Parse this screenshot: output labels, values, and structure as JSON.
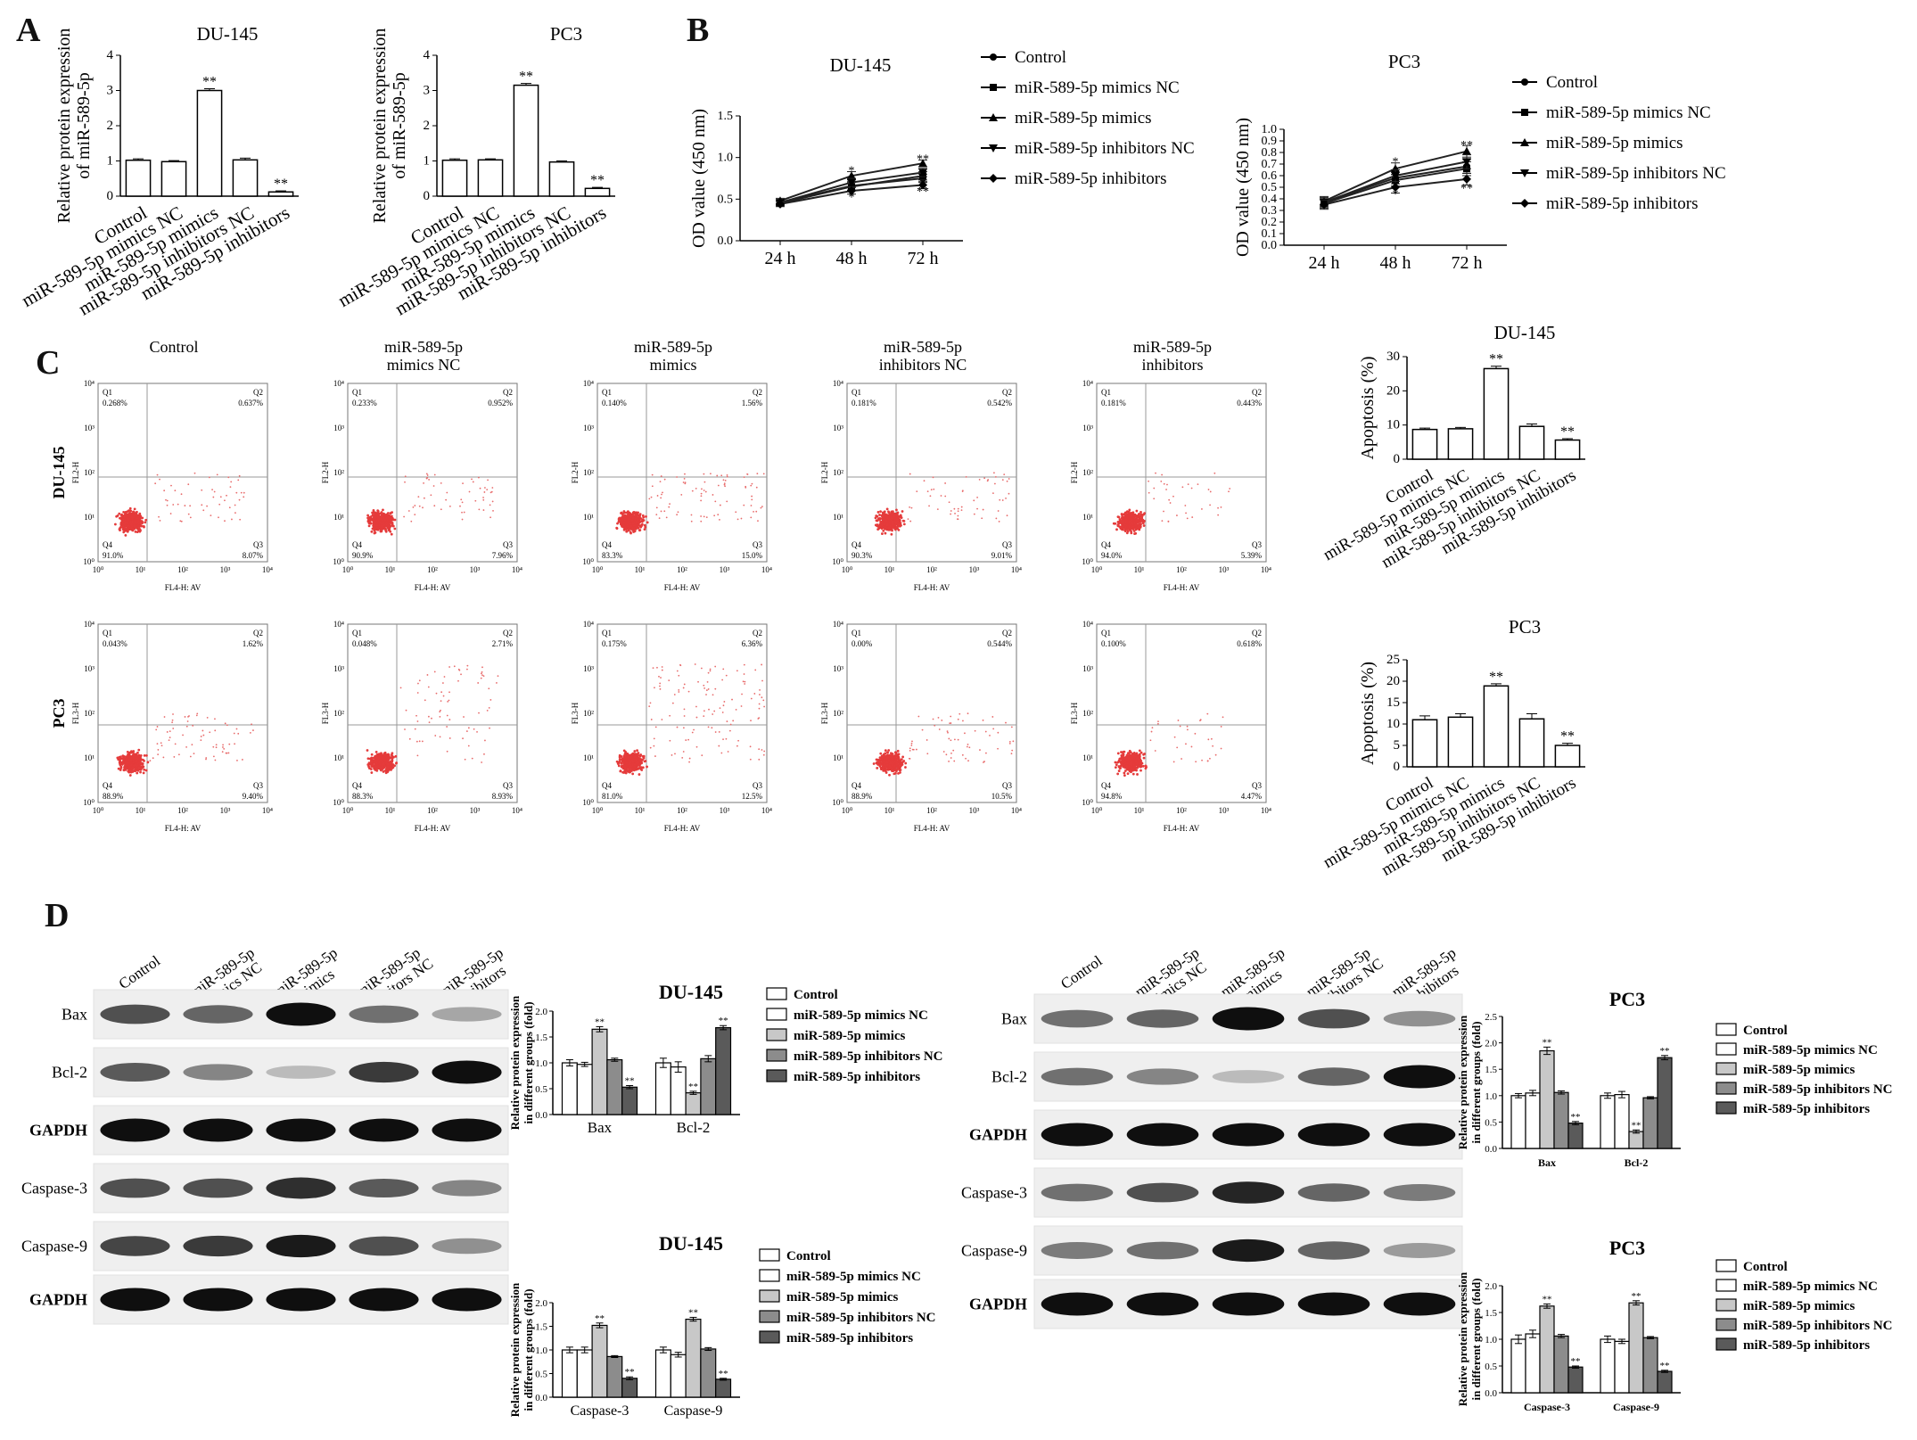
{
  "panel_labels": {
    "a": "A",
    "b": "B",
    "c": "C",
    "d": "D"
  },
  "sig": {
    "double": "**",
    "single": "*"
  },
  "groups": [
    "Control",
    "miR-589-5p mimics NC",
    "miR-589-5p mimics",
    "miR-589-5p inhibitors NC",
    "miR-589-5p inhibitors"
  ],
  "flow": {
    "row_labels": [
      "DU-145",
      "PC3"
    ],
    "column_titles": [
      [
        "Control"
      ],
      [
        "miR-589-5p",
        "mimics NC"
      ],
      [
        "miR-589-5p",
        "mimics"
      ],
      [
        "miR-589-5p",
        "inhibitors NC"
      ],
      [
        "miR-589-5p",
        "inhibitors"
      ]
    ],
    "x_label": "FL4-H: AV",
    "y_labels": [
      "FL2-H",
      "FL3-H"
    ],
    "quadrant_names": [
      "Q1",
      "Q2",
      "Q3",
      "Q4"
    ],
    "tick_labels": [
      "10⁰",
      "10¹",
      "10²",
      "10³",
      "10⁴"
    ],
    "quadrants": [
      [
        {
          "q1": "0.268%",
          "q2": "0.637%",
          "q3": "8.07%",
          "q4": "91.0%"
        },
        {
          "q1": "0.233%",
          "q2": "0.952%",
          "q3": "7.96%",
          "q4": "90.9%"
        },
        {
          "q1": "0.140%",
          "q2": "1.56%",
          "q3": "15.0%",
          "q4": "83.3%"
        },
        {
          "q1": "0.181%",
          "q2": "0.542%",
          "q3": "9.01%",
          "q4": "90.3%"
        },
        {
          "q1": "0.181%",
          "q2": "0.443%",
          "q3": "5.39%",
          "q4": "94.0%"
        }
      ],
      [
        {
          "q1": "0.043%",
          "q2": "1.62%",
          "q3": "9.40%",
          "q4": "88.9%"
        },
        {
          "q1": "0.048%",
          "q2": "2.71%",
          "q3": "8.93%",
          "q4": "88.3%"
        },
        {
          "q1": "0.175%",
          "q2": "6.36%",
          "q3": "12.5%",
          "q4": "81.0%"
        },
        {
          "q1": "0.00%",
          "q2": "0.544%",
          "q3": "10.5%",
          "q4": "88.9%"
        },
        {
          "q1": "0.100%",
          "q2": "0.618%",
          "q3": "4.47%",
          "q4": "94.8%"
        }
      ]
    ]
  },
  "western": {
    "left_lanes": [
      "Control",
      "miR-589-5p\nmimics NC",
      "miR-589-5p\nmimics",
      "miR-589-5p\ninhibitors NC",
      "miR-589-5p\ninhibitors"
    ],
    "right_lanes": [
      "Control",
      "miR-589-5p\nmimics NC",
      "miR-589-5p\nmimics",
      "miR-589-5p\ninhibitors NC",
      "miR-589-5p\ninhibitors"
    ],
    "rows": [
      "Bax",
      "Bcl-2",
      "GAPDH",
      "Caspase-3",
      "Caspase-9",
      "GAPDH"
    ],
    "bands_left": [
      [
        0.7,
        0.6,
        1.0,
        0.55,
        0.3
      ],
      [
        0.65,
        0.45,
        0.2,
        0.8,
        1.0
      ],
      [
        1,
        1,
        1,
        1,
        1
      ],
      [
        0.7,
        0.7,
        0.85,
        0.65,
        0.45
      ],
      [
        0.75,
        0.8,
        0.95,
        0.7,
        0.4
      ],
      [
        1,
        1,
        1,
        1,
        1
      ]
    ],
    "bands_right": [
      [
        0.55,
        0.6,
        1.0,
        0.7,
        0.4
      ],
      [
        0.55,
        0.45,
        0.2,
        0.6,
        1.0
      ],
      [
        1,
        1,
        1,
        1,
        1
      ],
      [
        0.55,
        0.7,
        0.9,
        0.6,
        0.5
      ],
      [
        0.5,
        0.55,
        0.95,
        0.6,
        0.35
      ],
      [
        1,
        1,
        1,
        1,
        1
      ]
    ]
  },
  "chart_data": [
    {
      "id": "A-DU145",
      "type": "bar",
      "title": "DU-145",
      "ylabel": "Relative protein expression\nof miR-589-5p",
      "categories": [
        "Control",
        "miR-589-5p mimics NC",
        "miR-589-5p mimics",
        "miR-589-5p inhibitors NC",
        "miR-589-5p inhibitors"
      ],
      "values": [
        1.02,
        0.98,
        3.0,
        1.03,
        0.12
      ],
      "errors": [
        0.04,
        0.03,
        0.05,
        0.05,
        0.03
      ],
      "sig": [
        "",
        "",
        "**",
        "",
        "**"
      ],
      "ylim": [
        0,
        4
      ],
      "yticks": [
        0,
        1,
        2,
        3,
        4
      ]
    },
    {
      "id": "A-PC3",
      "type": "bar",
      "title": "PC3",
      "ylabel": "Relative protein expression\nof miR-589-5p",
      "categories": [
        "Control",
        "miR-589-5p mimics NC",
        "miR-589-5p mimics",
        "miR-589-5p inhibitors NC",
        "miR-589-5p inhibitors"
      ],
      "values": [
        1.02,
        1.03,
        3.15,
        0.97,
        0.22
      ],
      "errors": [
        0.04,
        0.03,
        0.05,
        0.03,
        0.03
      ],
      "sig": [
        "",
        "",
        "**",
        "",
        "**"
      ],
      "ylim": [
        0,
        4
      ],
      "yticks": [
        0,
        1,
        2,
        3,
        4
      ]
    },
    {
      "id": "B-DU145",
      "type": "line",
      "title": "DU-145",
      "ylabel": "OD value (450 nm)",
      "x": [
        "24 h",
        "48 h",
        "72 h"
      ],
      "series": [
        {
          "name": "Control",
          "values": [
            0.46,
            0.66,
            0.75
          ],
          "errors": [
            0.03,
            0.05,
            0.05
          ]
        },
        {
          "name": "miR-589-5p mimics NC",
          "values": [
            0.45,
            0.65,
            0.78
          ],
          "errors": [
            0.03,
            0.05,
            0.05
          ]
        },
        {
          "name": "miR-589-5p mimics",
          "values": [
            0.48,
            0.78,
            0.93
          ],
          "errors": [
            0.03,
            0.05,
            0.04
          ]
        },
        {
          "name": "miR-589-5p inhibitors NC",
          "values": [
            0.46,
            0.7,
            0.82
          ],
          "errors": [
            0.03,
            0.05,
            0.05
          ]
        },
        {
          "name": "miR-589-5p inhibitors",
          "values": [
            0.44,
            0.6,
            0.67
          ],
          "errors": [
            0.03,
            0.04,
            0.04
          ]
        }
      ],
      "annotations": [
        {
          "x": "48 h",
          "y": 0.84,
          "text": "*"
        },
        {
          "x": "48 h",
          "y": 0.52,
          "text": "*"
        },
        {
          "x": "72 h",
          "y": 0.98,
          "text": "**"
        },
        {
          "x": "72 h",
          "y": 0.59,
          "text": "**"
        }
      ],
      "ylim": [
        0,
        1.5
      ],
      "yticks": [
        0.0,
        0.5,
        1.0,
        1.5
      ]
    },
    {
      "id": "B-PC3",
      "type": "line",
      "title": "PC3",
      "ylabel": "OD value (450 nm)",
      "x": [
        "24 h",
        "48 h",
        "72 h"
      ],
      "series": [
        {
          "name": "Control",
          "values": [
            0.37,
            0.58,
            0.68
          ],
          "errors": [
            0.04,
            0.05,
            0.06
          ]
        },
        {
          "name": "miR-589-5p mimics NC",
          "values": [
            0.36,
            0.56,
            0.66
          ],
          "errors": [
            0.04,
            0.05,
            0.06
          ]
        },
        {
          "name": "miR-589-5p mimics",
          "values": [
            0.38,
            0.66,
            0.81
          ],
          "errors": [
            0.04,
            0.05,
            0.05
          ]
        },
        {
          "name": "miR-589-5p inhibitors NC",
          "values": [
            0.37,
            0.6,
            0.72
          ],
          "errors": [
            0.04,
            0.05,
            0.06
          ]
        },
        {
          "name": "miR-589-5p inhibitors",
          "values": [
            0.35,
            0.5,
            0.57
          ],
          "errors": [
            0.04,
            0.05,
            0.05
          ]
        }
      ],
      "annotations": [
        {
          "x": "48 h",
          "y": 0.72,
          "text": "*"
        },
        {
          "x": "48 h",
          "y": 0.44,
          "text": "*"
        },
        {
          "x": "72 h",
          "y": 0.86,
          "text": "**"
        },
        {
          "x": "72 h",
          "y": 0.49,
          "text": "**"
        }
      ],
      "ylim": [
        0,
        1.0
      ],
      "yticks": [
        0.0,
        0.1,
        0.2,
        0.3,
        0.4,
        0.5,
        0.6,
        0.7,
        0.8,
        0.9,
        1.0
      ]
    },
    {
      "id": "C-DU145",
      "type": "bar",
      "title": "DU-145",
      "ylabel": "Apoptosis (%)",
      "categories": [
        "Control",
        "miR-589-5p mimics NC",
        "miR-589-5p mimics",
        "miR-589-5p inhibitors NC",
        "miR-589-5p inhibitors"
      ],
      "values": [
        8.7,
        8.9,
        26.5,
        9.6,
        5.6
      ],
      "errors": [
        0.4,
        0.4,
        0.7,
        0.7,
        0.4
      ],
      "sig": [
        "",
        "",
        "**",
        "",
        "**"
      ],
      "ylim": [
        0,
        30
      ],
      "yticks": [
        0,
        10,
        20,
        30
      ]
    },
    {
      "id": "C-PC3",
      "type": "bar",
      "title": "PC3",
      "ylabel": "Apoptosis (%)",
      "categories": [
        "Control",
        "miR-589-5p mimics NC",
        "miR-589-5p mimics",
        "miR-589-5p inhibitors NC",
        "miR-589-5p inhibitors"
      ],
      "values": [
        11.0,
        11.6,
        18.9,
        11.2,
        5.0
      ],
      "errors": [
        0.9,
        0.8,
        0.5,
        1.2,
        0.5
      ],
      "sig": [
        "",
        "",
        "**",
        "",
        "**"
      ],
      "ylim": [
        0,
        25
      ],
      "yticks": [
        0,
        5,
        10,
        15,
        20,
        25
      ]
    },
    {
      "id": "D-DU145-bax",
      "type": "bar",
      "title": "DU-145",
      "ylabel": "Relative protein expression\nin different groups (fold)",
      "categories": [
        "Bax",
        "Bcl-2"
      ],
      "series": [
        {
          "name": "Control",
          "values": [
            1.0,
            1.0
          ],
          "errors": [
            0.06,
            0.09
          ]
        },
        {
          "name": "miR-589-5p mimics NC",
          "values": [
            0.97,
            0.92
          ],
          "errors": [
            0.04,
            0.1
          ]
        },
        {
          "name": "miR-589-5p mimics",
          "values": [
            1.65,
            0.42
          ],
          "errors": [
            0.05,
            0.03
          ]
        },
        {
          "name": "miR-589-5p inhibitors NC",
          "values": [
            1.06,
            1.08
          ],
          "errors": [
            0.03,
            0.06
          ]
        },
        {
          "name": "miR-589-5p inhibitors",
          "values": [
            0.53,
            1.68
          ],
          "errors": [
            0.03,
            0.04
          ]
        }
      ],
      "sig": [
        [
          "",
          "",
          "**",
          "",
          "**"
        ],
        [
          "",
          "",
          "**",
          "",
          "**"
        ]
      ],
      "ylim": [
        0,
        2.0
      ],
      "yticks": [
        0.0,
        0.5,
        1.0,
        1.5,
        2.0
      ]
    },
    {
      "id": "D-DU145-casp",
      "type": "bar",
      "title": "DU-145",
      "ylabel": "Relative protein expression\nin different groups (fold)",
      "categories": [
        "Caspase-3",
        "Caspase-9"
      ],
      "series": [
        {
          "name": "Control",
          "values": [
            1.0,
            1.0
          ],
          "errors": [
            0.06,
            0.06
          ]
        },
        {
          "name": "miR-589-5p mimics NC",
          "values": [
            1.0,
            0.9
          ],
          "errors": [
            0.06,
            0.05
          ]
        },
        {
          "name": "miR-589-5p mimics",
          "values": [
            1.52,
            1.65
          ],
          "errors": [
            0.05,
            0.04
          ]
        },
        {
          "name": "miR-589-5p inhibitors NC",
          "values": [
            0.86,
            1.02
          ],
          "errors": [
            0.02,
            0.03
          ]
        },
        {
          "name": "miR-589-5p inhibitors",
          "values": [
            0.4,
            0.38
          ],
          "errors": [
            0.03,
            0.02
          ]
        }
      ],
      "sig": [
        [
          "",
          "",
          "**",
          "",
          "**"
        ],
        [
          "",
          "",
          "**",
          "",
          "**"
        ]
      ],
      "ylim": [
        0,
        2.0
      ],
      "yticks": [
        0.0,
        0.5,
        1.0,
        1.5,
        2.0
      ]
    },
    {
      "id": "D-PC3-bax",
      "type": "bar",
      "title": "PC3",
      "ylabel": "Relative protein expression\nin different groups (fold)",
      "categories": [
        "Bax",
        "Bcl-2"
      ],
      "series": [
        {
          "name": "Control",
          "values": [
            1.0,
            1.0
          ],
          "errors": [
            0.04,
            0.05
          ]
        },
        {
          "name": "miR-589-5p mimics NC",
          "values": [
            1.05,
            1.02
          ],
          "errors": [
            0.05,
            0.06
          ]
        },
        {
          "name": "miR-589-5p mimics",
          "values": [
            1.85,
            0.32
          ],
          "errors": [
            0.07,
            0.03
          ]
        },
        {
          "name": "miR-589-5p inhibitors NC",
          "values": [
            1.06,
            0.96
          ],
          "errors": [
            0.03,
            0.02
          ]
        },
        {
          "name": "miR-589-5p inhibitors",
          "values": [
            0.48,
            1.72
          ],
          "errors": [
            0.03,
            0.04
          ]
        }
      ],
      "sig": [
        [
          "",
          "",
          "**",
          "",
          "**"
        ],
        [
          "",
          "",
          "**",
          "",
          "**"
        ]
      ],
      "ylim": [
        0,
        2.5
      ],
      "yticks": [
        0.0,
        0.5,
        1.0,
        1.5,
        2.0,
        2.5
      ]
    },
    {
      "id": "D-PC3-casp",
      "type": "bar",
      "title": "PC3",
      "ylabel": "Relative protein expression\nin different groups (fold)",
      "categories": [
        "Caspase-3",
        "Caspase-9"
      ],
      "series": [
        {
          "name": "Control",
          "values": [
            1.0,
            1.0
          ],
          "errors": [
            0.08,
            0.06
          ]
        },
        {
          "name": "miR-589-5p mimics NC",
          "values": [
            1.1,
            0.96
          ],
          "errors": [
            0.07,
            0.04
          ]
        },
        {
          "name": "miR-589-5p mimics",
          "values": [
            1.62,
            1.68
          ],
          "errors": [
            0.04,
            0.04
          ]
        },
        {
          "name": "miR-589-5p inhibitors NC",
          "values": [
            1.06,
            1.03
          ],
          "errors": [
            0.03,
            0.02
          ]
        },
        {
          "name": "miR-589-5p inhibitors",
          "values": [
            0.48,
            0.4
          ],
          "errors": [
            0.02,
            0.02
          ]
        }
      ],
      "sig": [
        [
          "",
          "",
          "**",
          "",
          "**"
        ],
        [
          "",
          "",
          "**",
          "",
          "**"
        ]
      ],
      "ylim": [
        0,
        2.0
      ],
      "yticks": [
        0.0,
        0.5,
        1.0,
        1.5,
        2.0
      ]
    }
  ]
}
